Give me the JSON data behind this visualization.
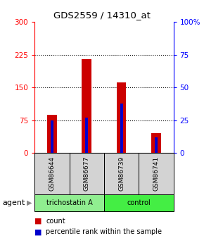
{
  "title": "GDS2559 / 14310_at",
  "samples": [
    "GSM86644",
    "GSM86677",
    "GSM86739",
    "GSM86741"
  ],
  "red_values": [
    88,
    215,
    162,
    45
  ],
  "blue_values_pct": [
    25,
    27,
    38,
    12
  ],
  "ylim_left": [
    0,
    300
  ],
  "ylim_right": [
    0,
    100
  ],
  "yticks_left": [
    0,
    75,
    150,
    225,
    300
  ],
  "yticks_right": [
    0,
    25,
    50,
    75,
    100
  ],
  "ytick_labels_right": [
    "0",
    "25",
    "50",
    "75",
    "100%"
  ],
  "bar_color_red": "#cc0000",
  "bar_color_blue": "#0000cc",
  "label_bg_color": "#d3d3d3",
  "group_colors": [
    "#90ee90",
    "#44ee44"
  ],
  "group_labels": [
    "trichostatin A",
    "control"
  ],
  "agent_label": "agent",
  "legend_red": "count",
  "legend_blue": "percentile rank within the sample"
}
